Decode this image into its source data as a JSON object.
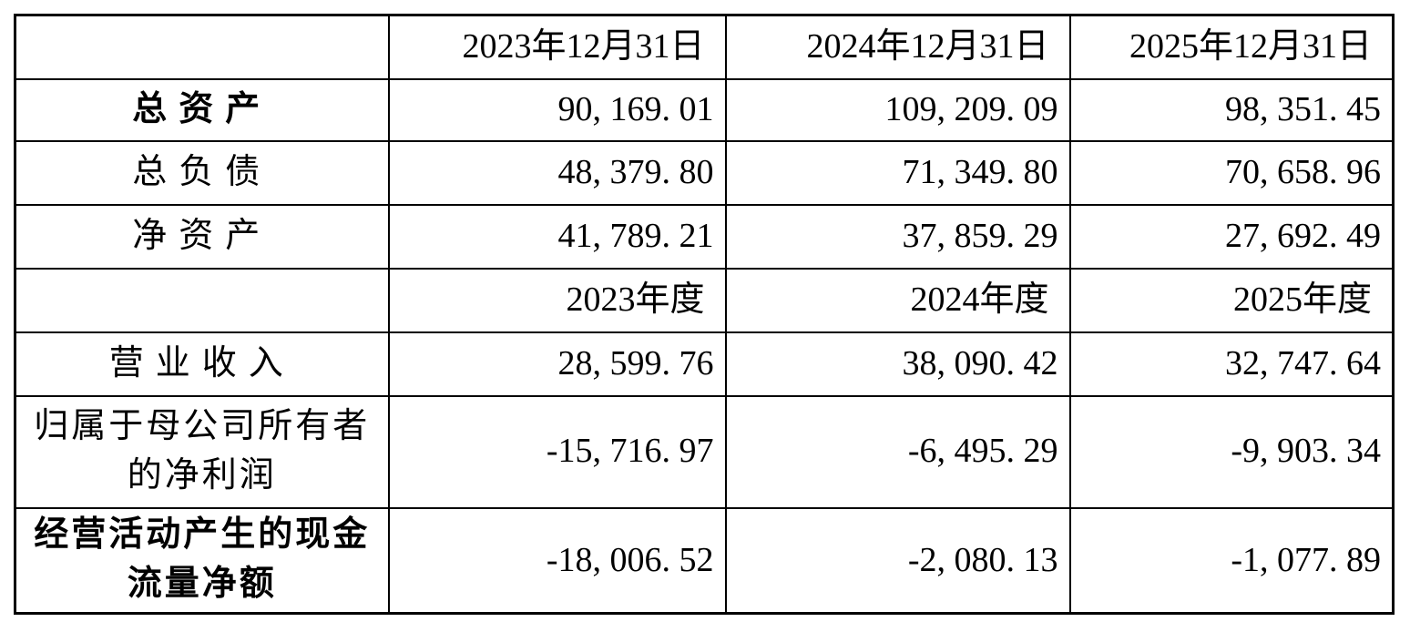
{
  "page": {
    "background_color": "#ffffff",
    "text_color": "#000000",
    "border_color": "#000000"
  },
  "table": {
    "rows": [
      {
        "kind": "column-header",
        "label": "",
        "values": [
          "2023年12月31日",
          "2024年12月31日",
          "2025年12月31日"
        ]
      },
      {
        "kind": "data",
        "label": "总资产",
        "bold": true,
        "values": [
          "90, 169. 01",
          "109, 209. 09",
          "98, 351. 45"
        ]
      },
      {
        "kind": "data",
        "label": "总负债",
        "bold": false,
        "values": [
          "48, 379. 80",
          "71, 349. 80",
          "70, 658. 96"
        ]
      },
      {
        "kind": "data",
        "label": "净资产",
        "bold": false,
        "values": [
          "41, 789. 21",
          "37, 859. 29",
          "27, 692. 49"
        ]
      },
      {
        "kind": "column-header",
        "label": "",
        "values": [
          "2023年度",
          "2024年度",
          "2025年度"
        ]
      },
      {
        "kind": "data",
        "label": "营业收入",
        "bold": false,
        "values": [
          "28, 599. 76",
          "38, 090. 42",
          "32, 747. 64"
        ]
      },
      {
        "kind": "data",
        "label": "归属于母公司所有者的净利润",
        "bold": false,
        "values": [
          "-15, 716. 97",
          "-6, 495. 29",
          "-9, 903. 34"
        ]
      },
      {
        "kind": "data",
        "label": "经营活动产生的现金流量净额",
        "bold": true,
        "values": [
          "-18, 006. 52",
          "-2, 080. 13",
          "-1, 077. 89"
        ]
      }
    ]
  },
  "chart_data": {
    "type": "table",
    "columns": [
      "",
      "2023年12月31日",
      "2024年12月31日",
      "2025年12月31日"
    ],
    "secondary_columns": [
      "",
      "2023年度",
      "2024年度",
      "2025年度"
    ],
    "rows": [
      [
        "总资产",
        90169.01,
        109209.09,
        98351.45
      ],
      [
        "总负债",
        48379.8,
        71349.8,
        70658.96
      ],
      [
        "净资产",
        41789.21,
        37859.29,
        27692.49
      ],
      [
        "营业收入",
        28599.76,
        38090.42,
        32747.64
      ],
      [
        "归属于母公司所有者的净利润",
        -15716.97,
        -6495.29,
        -9903.34
      ],
      [
        "经营活动产生的现金流量净额",
        -18006.52,
        -2080.13,
        -1077.89
      ]
    ]
  }
}
